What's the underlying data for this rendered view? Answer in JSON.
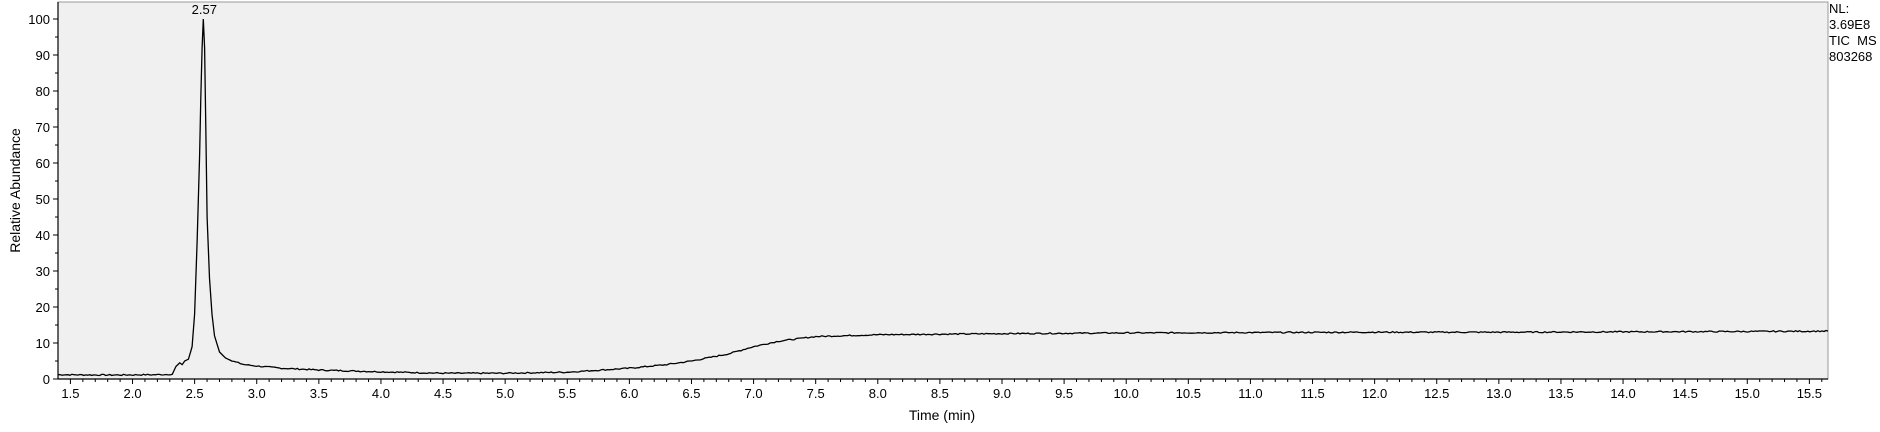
{
  "info": {
    "nl_label": "NL:",
    "nl_value": "3.69E8",
    "scan_filter": "TIC  MS",
    "sample_id": "803268"
  },
  "colors": {
    "plot_background": "#f0f0f0",
    "trace": "#000000",
    "axis": "#000000"
  },
  "chart_data": {
    "type": "line",
    "title": "",
    "xlabel": "Time (min)",
    "ylabel": "Relative Abundance",
    "xlim": [
      1.4,
      15.65
    ],
    "ylim": [
      0,
      100
    ],
    "grid": false,
    "x_ticks": [
      1.5,
      2.0,
      2.5,
      3.0,
      3.5,
      4.0,
      4.5,
      5.0,
      5.5,
      6.0,
      6.5,
      7.0,
      7.5,
      8.0,
      8.5,
      9.0,
      9.5,
      10.0,
      10.5,
      11.0,
      11.5,
      12.0,
      12.5,
      13.0,
      13.5,
      14.0,
      14.5,
      15.0,
      15.5
    ],
    "x_tick_labels": [
      "1.5",
      "2.0",
      "2.5",
      "3.0",
      "3.5",
      "4.0",
      "4.5",
      "5.0",
      "5.5",
      "6.0",
      "6.5",
      "7.0",
      "7.5",
      "8.0",
      "8.5",
      "9.0",
      "9.5",
      "10.0",
      "10.5",
      "11.0",
      "11.5",
      "12.0",
      "12.5",
      "13.0",
      "13.5",
      "14.0",
      "14.5",
      "15.0",
      "15.5"
    ],
    "y_ticks": [
      0,
      10,
      20,
      30,
      40,
      50,
      60,
      70,
      80,
      90,
      100
    ],
    "y_tick_labels": [
      "0",
      "10",
      "20",
      "30",
      "40",
      "50",
      "60",
      "70",
      "80",
      "90",
      "100"
    ],
    "annotations": [
      {
        "x": 2.57,
        "y": 100,
        "text": "2.57"
      }
    ],
    "series": [
      {
        "x": [
          1.4,
          1.8,
          2.2,
          2.32,
          2.35,
          2.38,
          2.4,
          2.42,
          2.45,
          2.48,
          2.5,
          2.52,
          2.54,
          2.55,
          2.56,
          2.57,
          2.58,
          2.59,
          2.6,
          2.62,
          2.64,
          2.66,
          2.7,
          2.75,
          2.8,
          2.9,
          3.0,
          3.2,
          3.5,
          3.8,
          4.0,
          4.5,
          5.0,
          5.5,
          6.0,
          6.3,
          6.5,
          6.8,
          7.0,
          7.2,
          7.5,
          8.0,
          9.0,
          10.0,
          11.0,
          12.0,
          13.0,
          14.0,
          15.0,
          15.65
        ],
        "y": [
          1.2,
          1.1,
          1.2,
          1.3,
          3.5,
          4.5,
          4.0,
          5.0,
          5.5,
          9.0,
          18.0,
          38.0,
          62.0,
          78.0,
          92.0,
          100.0,
          92.0,
          70.0,
          45.0,
          28.0,
          18.0,
          12.0,
          7.5,
          5.8,
          5.0,
          4.0,
          3.6,
          3.0,
          2.5,
          2.2,
          2.0,
          1.6,
          1.6,
          1.9,
          3.0,
          4.0,
          5.0,
          7.0,
          9.0,
          10.5,
          11.8,
          12.3,
          12.6,
          12.8,
          12.9,
          13.0,
          13.0,
          13.1,
          13.2,
          13.3
        ]
      }
    ]
  }
}
